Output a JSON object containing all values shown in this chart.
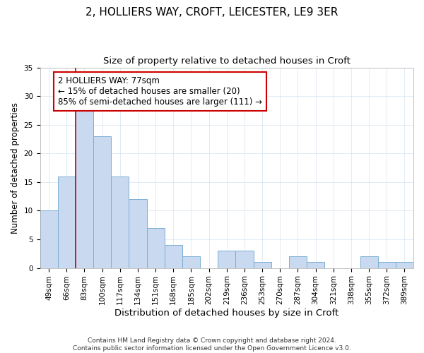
{
  "title": "2, HOLLIERS WAY, CROFT, LEICESTER, LE9 3ER",
  "subtitle": "Size of property relative to detached houses in Croft",
  "xlabel": "Distribution of detached houses by size in Croft",
  "ylabel": "Number of detached properties",
  "bar_labels": [
    "49sqm",
    "66sqm",
    "83sqm",
    "100sqm",
    "117sqm",
    "134sqm",
    "151sqm",
    "168sqm",
    "185sqm",
    "202sqm",
    "219sqm",
    "236sqm",
    "253sqm",
    "270sqm",
    "287sqm",
    "304sqm",
    "321sqm",
    "338sqm",
    "355sqm",
    "372sqm",
    "389sqm"
  ],
  "bar_values": [
    10,
    16,
    29,
    23,
    16,
    12,
    7,
    4,
    2,
    0,
    3,
    3,
    1,
    0,
    2,
    1,
    0,
    0,
    2,
    1,
    1
  ],
  "bar_color": "#c9d9f0",
  "bar_edge_color": "#7bafd4",
  "ylim": [
    0,
    35
  ],
  "yticks": [
    0,
    5,
    10,
    15,
    20,
    25,
    30,
    35
  ],
  "vline_x_index": 2,
  "vline_color": "#cc0000",
  "annotation_text": "2 HOLLIERS WAY: 77sqm\n← 15% of detached houses are smaller (20)\n85% of semi-detached houses are larger (111) →",
  "annotation_box_color": "#ffffff",
  "annotation_box_edge": "#cc0000",
  "footer": "Contains HM Land Registry data © Crown copyright and database right 2024.\nContains public sector information licensed under the Open Government Licence v3.0.",
  "title_fontsize": 11,
  "subtitle_fontsize": 9.5,
  "xlabel_fontsize": 9.5,
  "ylabel_fontsize": 8.5,
  "tick_fontsize": 7.5,
  "annotation_fontsize": 8.5,
  "footer_fontsize": 6.5
}
